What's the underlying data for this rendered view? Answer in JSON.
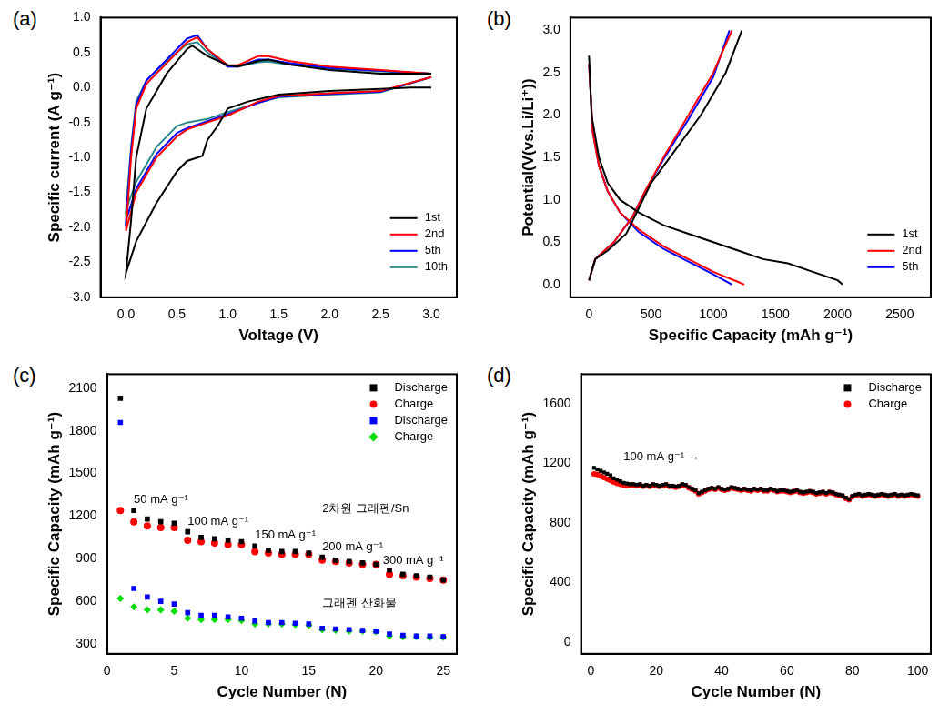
{
  "chart_data": [
    {
      "type": "line",
      "title": "(a)",
      "x_label": "Voltage (V)",
      "y_label": "Specific current (A g⁻¹)",
      "xlim": [
        -0.25,
        3.25
      ],
      "xticks": [
        {
          "value": 0,
          "label": "0.0"
        },
        {
          "value": 0.5,
          "label": "0.5"
        },
        {
          "value": 1,
          "label": "1.0"
        },
        {
          "value": 1.5,
          "label": "1.5"
        },
        {
          "value": 2,
          "label": "2.0"
        },
        {
          "value": 2.5,
          "label": "2.5"
        },
        {
          "value": 3,
          "label": "3.0"
        }
      ],
      "ylim": [
        -3,
        1
      ],
      "yticks": [
        {
          "value": -3,
          "label": "-3.0"
        },
        {
          "value": -2.5,
          "label": "-2.5"
        },
        {
          "value": -2,
          "label": "-2.0"
        },
        {
          "value": -1.5,
          "label": "-1.5"
        },
        {
          "value": -1,
          "label": "-1.0"
        },
        {
          "value": -0.5,
          "label": "-0.5"
        },
        {
          "value": 0,
          "label": "0.0"
        },
        {
          "value": 0.5,
          "label": "0.5"
        },
        {
          "value": 1,
          "label": "1.0"
        }
      ],
      "grid": false,
      "legend": "lower right",
      "series": [
        {
          "name": "1st",
          "color": "#000000",
          "marker": "none",
          "line_style": "solid",
          "x": [
            3.0,
            2.8,
            2.5,
            2.0,
            1.5,
            1.2,
            1.0,
            0.9,
            0.8,
            0.75,
            0.6,
            0.5,
            0.3,
            0.1,
            0.0,
            0.05,
            0.1,
            0.2,
            0.4,
            0.6,
            0.65,
            0.8,
            1.0,
            1.1,
            1.3,
            1.4,
            1.6,
            2.0,
            2.5,
            3.0
          ],
          "values": [
            0.0,
            0.0,
            -0.02,
            -0.05,
            -0.1,
            -0.2,
            -0.3,
            -0.55,
            -0.75,
            -0.98,
            -1.05,
            -1.2,
            -1.65,
            -2.2,
            -2.65,
            -1.9,
            -1.0,
            -0.3,
            0.2,
            0.55,
            0.6,
            0.45,
            0.32,
            0.3,
            0.38,
            0.4,
            0.33,
            0.25,
            0.2,
            0.2
          ]
        },
        {
          "name": "2nd",
          "color": "#ff0000",
          "marker": "none",
          "line_style": "solid",
          "x": [
            3.0,
            2.5,
            2.0,
            1.5,
            1.3,
            1.0,
            0.8,
            0.6,
            0.5,
            0.3,
            0.1,
            0.0,
            0.05,
            0.1,
            0.2,
            0.4,
            0.6,
            0.7,
            0.8,
            1.0,
            1.1,
            1.3,
            1.4,
            1.6,
            2.0,
            2.5,
            3.0
          ],
          "values": [
            0.15,
            -0.05,
            -0.08,
            -0.12,
            -0.2,
            -0.4,
            -0.5,
            -0.6,
            -0.7,
            -1.0,
            -1.5,
            -2.05,
            -1.0,
            -0.3,
            0.05,
            0.35,
            0.65,
            0.72,
            0.55,
            0.32,
            0.32,
            0.45,
            0.45,
            0.38,
            0.3,
            0.25,
            0.2
          ]
        },
        {
          "name": "5th",
          "color": "#0000ff",
          "marker": "none",
          "line_style": "solid",
          "x": [
            3.0,
            2.5,
            2.0,
            1.5,
            1.3,
            1.0,
            0.8,
            0.6,
            0.5,
            0.3,
            0.1,
            0.0,
            0.05,
            0.1,
            0.2,
            0.4,
            0.6,
            0.7,
            0.8,
            1.0,
            1.1,
            1.3,
            1.4,
            1.6,
            2.0,
            2.5,
            3.0
          ],
          "values": [
            0.15,
            -0.06,
            -0.09,
            -0.13,
            -0.22,
            -0.38,
            -0.48,
            -0.58,
            -0.65,
            -0.95,
            -1.45,
            -1.9,
            -0.9,
            -0.25,
            0.1,
            0.4,
            0.7,
            0.75,
            0.55,
            0.3,
            0.3,
            0.4,
            0.4,
            0.35,
            0.28,
            0.24,
            0.2
          ]
        },
        {
          "name": "10th",
          "color": "#2a8a8a",
          "marker": "none",
          "line_style": "solid",
          "x": [
            3.0,
            2.5,
            2.0,
            1.5,
            1.3,
            1.0,
            0.8,
            0.6,
            0.5,
            0.3,
            0.1,
            0.0,
            0.05,
            0.1,
            0.2,
            0.4,
            0.6,
            0.7,
            0.8,
            1.0,
            1.1,
            1.3,
            1.4,
            1.6,
            2.0,
            2.5,
            3.0
          ],
          "values": [
            0.15,
            -0.07,
            -0.1,
            -0.14,
            -0.22,
            -0.35,
            -0.45,
            -0.5,
            -0.55,
            -0.85,
            -1.35,
            -1.75,
            -0.85,
            -0.2,
            0.1,
            0.38,
            0.62,
            0.65,
            0.5,
            0.3,
            0.3,
            0.36,
            0.37,
            0.33,
            0.27,
            0.23,
            0.2
          ]
        }
      ]
    },
    {
      "type": "line",
      "title": "(b)",
      "x_label": "Specific Capacity (mAh g⁻¹)",
      "y_label": "Potential(V(vs.Li/Li⁺))",
      "xlim": [
        -150,
        2750
      ],
      "xticks": [
        0,
        500,
        1000,
        1500,
        2000,
        2500
      ],
      "ylim": [
        -0.15,
        3.15
      ],
      "yticks": [
        {
          "value": 0,
          "label": "0.0"
        },
        {
          "value": 0.5,
          "label": "0.5"
        },
        {
          "value": 1,
          "label": "1.0"
        },
        {
          "value": 1.5,
          "label": "1.5"
        },
        {
          "value": 2,
          "label": "2.0"
        },
        {
          "value": 2.5,
          "label": "2.5"
        },
        {
          "value": 3,
          "label": "3.0"
        }
      ],
      "grid": false,
      "legend": "lower right",
      "series": [
        {
          "name": "1st",
          "color": "#000000",
          "marker": "none",
          "line_style": "solid",
          "x": [
            0,
            20,
            80,
            150,
            250,
            400,
            600,
            800,
            1000,
            1200,
            1400,
            1600,
            1800,
            2000,
            2040,
            2040,
            0,
            50,
            150,
            300,
            400,
            500,
            700,
            900,
            1100,
            1230
          ],
          "values": [
            2.7,
            2.0,
            1.5,
            1.2,
            1.0,
            0.85,
            0.7,
            0.6,
            0.5,
            0.4,
            0.3,
            0.25,
            0.15,
            0.05,
            0.0,
            null,
            0.05,
            0.3,
            0.4,
            0.6,
            0.9,
            1.2,
            1.6,
            2.0,
            2.5,
            3.0
          ]
        },
        {
          "name": "2nd",
          "color": "#ff0000",
          "marker": "none",
          "line_style": "solid",
          "x": [
            0,
            30,
            80,
            150,
            250,
            400,
            600,
            800,
            1000,
            1200,
            1250,
            1250,
            0,
            50,
            200,
            350,
            450,
            600,
            800,
            1000,
            1150
          ],
          "values": [
            2.6,
            1.8,
            1.4,
            1.1,
            0.85,
            0.65,
            0.45,
            0.3,
            0.15,
            0.03,
            0.0,
            null,
            0.05,
            0.3,
            0.5,
            0.8,
            1.1,
            1.5,
            2.0,
            2.5,
            3.0
          ]
        },
        {
          "name": "5th",
          "color": "#0000ff",
          "marker": "none",
          "line_style": "solid",
          "x": [
            0,
            30,
            80,
            150,
            250,
            400,
            600,
            800,
            1000,
            1150,
            1150,
            0,
            50,
            200,
            350,
            450,
            600,
            800,
            1000,
            1130
          ],
          "values": [
            2.6,
            1.8,
            1.4,
            1.1,
            0.85,
            0.62,
            0.42,
            0.27,
            0.12,
            0.0,
            null,
            0.05,
            0.3,
            0.5,
            0.8,
            1.1,
            1.48,
            1.95,
            2.45,
            3.0
          ]
        }
      ]
    },
    {
      "type": "scatter",
      "title": "(c)",
      "x_label": "Cycle Number (N)",
      "y_label": "Specific Capacity (mAh g⁻¹)",
      "xlim": [
        0,
        26
      ],
      "xticks": [
        0,
        5,
        10,
        15,
        20,
        25
      ],
      "ylim": [
        230,
        2200
      ],
      "yticks": [
        300,
        600,
        900,
        1200,
        1500,
        1800,
        2100
      ],
      "grid": false,
      "legend": "upper right",
      "x": [
        1,
        2,
        3,
        4,
        5,
        6,
        7,
        8,
        9,
        10,
        11,
        12,
        13,
        14,
        15,
        16,
        17,
        18,
        19,
        20,
        21,
        22,
        23,
        24,
        25
      ],
      "series": [
        {
          "name": "Discharge",
          "color": "#000000",
          "marker": "square",
          "line_style": "none",
          "values": [
            2030,
            1240,
            1180,
            1160,
            1150,
            1090,
            1050,
            1040,
            1030,
            1020,
            990,
            960,
            950,
            950,
            940,
            910,
            890,
            880,
            870,
            860,
            820,
            790,
            780,
            770,
            750
          ]
        },
        {
          "name": "Charge",
          "color": "#ff0000",
          "marker": "circle",
          "line_style": "none",
          "values": [
            1240,
            1160,
            1130,
            1120,
            1120,
            1030,
            1020,
            1010,
            1000,
            1000,
            950,
            940,
            930,
            930,
            930,
            890,
            880,
            870,
            860,
            860,
            790,
            780,
            770,
            760,
            750
          ]
        },
        {
          "name": "Discharge",
          "color": "#0000ff",
          "marker": "square",
          "line_style": "none",
          "values": [
            1860,
            690,
            630,
            600,
            580,
            520,
            500,
            500,
            490,
            480,
            460,
            450,
            450,
            445,
            440,
            410,
            405,
            400,
            395,
            390,
            370,
            360,
            355,
            355,
            350
          ]
        },
        {
          "name": "Charge",
          "color": "#00dd00",
          "marker": "diamond",
          "line_style": "none",
          "values": [
            620,
            560,
            540,
            540,
            530,
            480,
            470,
            470,
            470,
            465,
            440,
            440,
            440,
            435,
            430,
            400,
            395,
            390,
            390,
            385,
            355,
            350,
            350,
            345,
            345
          ]
        }
      ],
      "annotations": [
        {
          "text": "50 mA g⁻¹",
          "x": 2,
          "y": 1290
        },
        {
          "text": "100 mA g⁻¹",
          "x": 6,
          "y": 1140
        },
        {
          "text": "150 mA g⁻¹",
          "x": 11,
          "y": 1040
        },
        {
          "text": "200 mA g⁻¹",
          "x": 16,
          "y": 960
        },
        {
          "text": "300 mA g⁻¹",
          "x": 20.5,
          "y": 865
        },
        {
          "text": "2차원 그래펜/Sn",
          "x": 16,
          "y": 1230
        },
        {
          "text": "그래펜 산화물",
          "x": 16,
          "y": 560
        }
      ]
    },
    {
      "type": "scatter",
      "title": "(d)",
      "x_label": "Cycle Number (N)",
      "y_label": "Specific Capacity (mAh g⁻¹)",
      "xlim": [
        -3,
        104
      ],
      "xticks": [
        0,
        20,
        40,
        60,
        80,
        100
      ],
      "ylim": [
        -80,
        1800
      ],
      "yticks": [
        0,
        400,
        800,
        1200,
        1600
      ],
      "grid": false,
      "legend": "upper right",
      "x": [
        1,
        2,
        3,
        4,
        5,
        6,
        7,
        8,
        9,
        10,
        11,
        12,
        13,
        14,
        15,
        16,
        17,
        18,
        19,
        20,
        21,
        22,
        23,
        24,
        25,
        26,
        27,
        28,
        29,
        30,
        31,
        32,
        33,
        34,
        35,
        36,
        37,
        38,
        39,
        40,
        41,
        42,
        43,
        44,
        45,
        46,
        47,
        48,
        49,
        50,
        51,
        52,
        53,
        54,
        55,
        56,
        57,
        58,
        59,
        60,
        61,
        62,
        63,
        64,
        65,
        66,
        67,
        68,
        69,
        70,
        71,
        72,
        73,
        74,
        75,
        76,
        77,
        78,
        79,
        80,
        81,
        82,
        83,
        84,
        85,
        86,
        87,
        88,
        89,
        90,
        91,
        92,
        93,
        94,
        95,
        96,
        97,
        98,
        99,
        100
      ],
      "series": [
        {
          "name": "Discharge",
          "color": "#000000",
          "marker": "square",
          "line_style": "none",
          "values": [
            1170,
            1160,
            1150,
            1140,
            1130,
            1120,
            1100,
            1090,
            1080,
            1070,
            1065,
            1060,
            1060,
            1055,
            1060,
            1050,
            1055,
            1050,
            1060,
            1055,
            1050,
            1055,
            1060,
            1050,
            1050,
            1045,
            1050,
            1060,
            1055,
            1040,
            1030,
            1020,
            1000,
            1010,
            1020,
            1030,
            1035,
            1030,
            1040,
            1030,
            1025,
            1030,
            1040,
            1035,
            1030,
            1025,
            1030,
            1025,
            1020,
            1030,
            1025,
            1030,
            1020,
            1020,
            1030,
            1025,
            1015,
            1020,
            1020,
            1015,
            1010,
            1015,
            1020,
            1010,
            1005,
            1010,
            1015,
            1010,
            1000,
            1005,
            1010,
            1000,
            1010,
            1005,
            995,
            990,
            985,
            970,
            960,
            980,
            990,
            995,
            985,
            990,
            995,
            990,
            985,
            990,
            995,
            990,
            985,
            990,
            995,
            985,
            990,
            985,
            990,
            995,
            990,
            985
          ]
        },
        {
          "name": "Charge",
          "color": "#ff0000",
          "marker": "circle",
          "line_style": "none",
          "values": [
            1130,
            1125,
            1115,
            1105,
            1095,
            1085,
            1075,
            1065,
            1060,
            1055,
            1050,
            1055,
            1055,
            1050,
            1055,
            1045,
            1050,
            1045,
            1055,
            1050,
            1045,
            1050,
            1055,
            1045,
            1045,
            1040,
            1045,
            1055,
            1050,
            1035,
            1025,
            1015,
            995,
            1005,
            1015,
            1025,
            1030,
            1025,
            1035,
            1025,
            1020,
            1025,
            1035,
            1030,
            1025,
            1020,
            1025,
            1020,
            1015,
            1025,
            1020,
            1025,
            1015,
            1015,
            1025,
            1020,
            1010,
            1015,
            1015,
            1010,
            1005,
            1010,
            1015,
            1005,
            1000,
            1005,
            1010,
            1005,
            995,
            1000,
            1005,
            995,
            1005,
            1000,
            990,
            985,
            980,
            965,
            955,
            975,
            985,
            990,
            980,
            985,
            990,
            985,
            980,
            985,
            990,
            985,
            980,
            985,
            990,
            980,
            985,
            980,
            985,
            990,
            985,
            980
          ]
        }
      ],
      "annotations": [
        {
          "text": "100 mA g⁻¹ →",
          "x": 10,
          "y": 1220
        }
      ]
    }
  ]
}
